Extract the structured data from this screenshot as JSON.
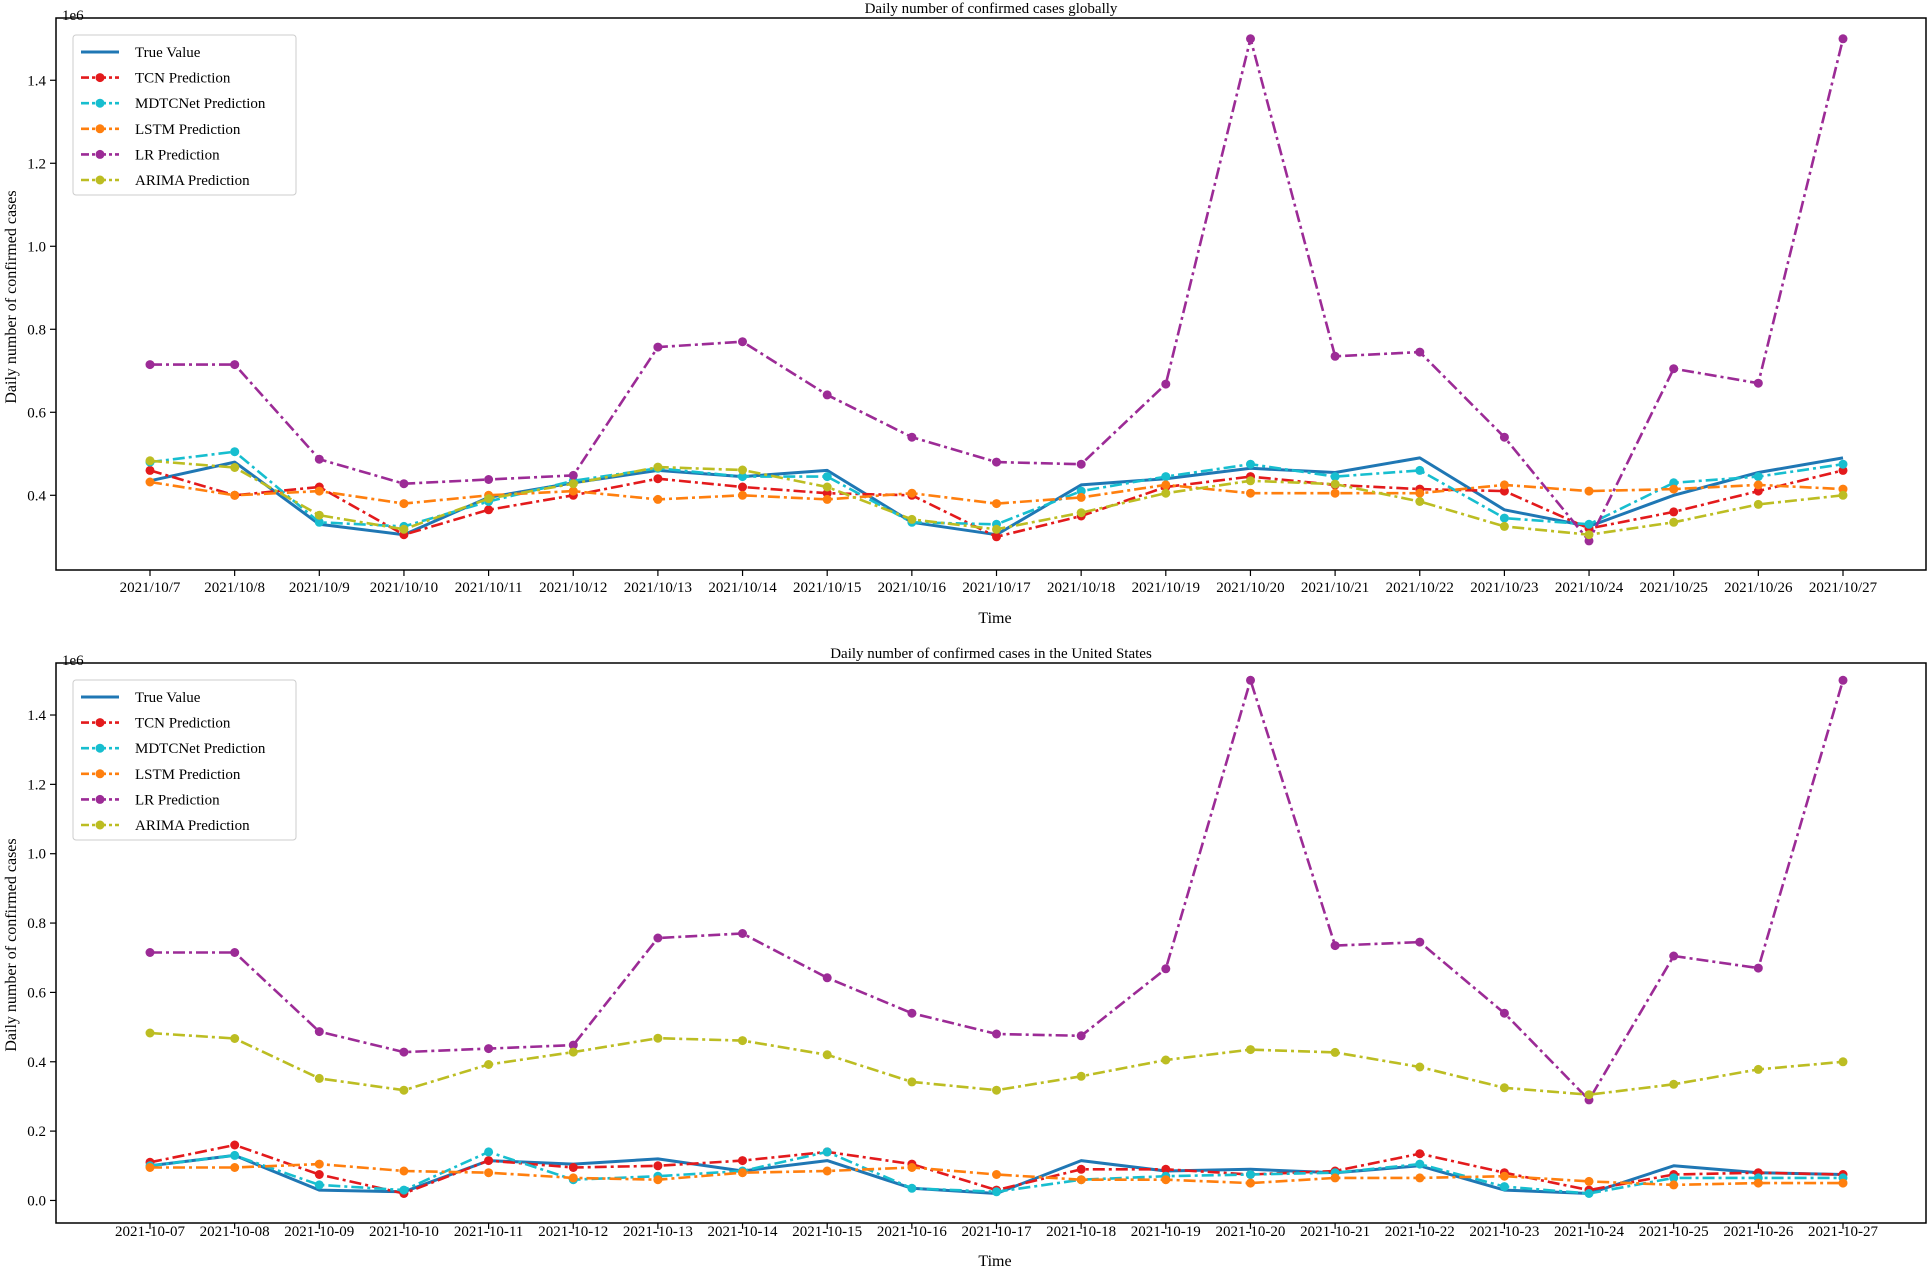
{
  "chart_data": [
    {
      "type": "line",
      "title": "Daily number of confirmed cases globally",
      "xlabel": "Time",
      "ylabel": "Daily number of confirmed cases",
      "y_offset_label": "1e6",
      "ylim": [
        0.22,
        1.55
      ],
      "yticks": [
        0.4,
        0.6,
        0.8,
        1.0,
        1.2,
        1.4
      ],
      "ytick_labels": [
        "0.4",
        "0.6",
        "0.8",
        "1.0",
        "1.2",
        "1.4"
      ],
      "legend_position": "top-left",
      "categories": [
        "2021/10/7",
        "2021/10/8",
        "2021/10/9",
        "2021/10/10",
        "2021/10/11",
        "2021/10/12",
        "2021/10/13",
        "2021/10/14",
        "2021/10/15",
        "2021/10/16",
        "2021/10/17",
        "2021/10/18",
        "2021/10/19",
        "2021/10/20",
        "2021/10/21",
        "2021/10/22",
        "2021/10/23",
        "2021/10/24",
        "2021/10/25",
        "2021/10/26",
        "2021/10/27"
      ],
      "series": [
        {
          "name": "True Value",
          "color": "#1f77b4",
          "style": "solid",
          "markers": false,
          "values": [
            0.435,
            0.48,
            0.33,
            0.305,
            0.395,
            0.43,
            0.46,
            0.445,
            0.46,
            0.335,
            0.305,
            0.425,
            0.44,
            0.465,
            0.455,
            0.49,
            0.365,
            0.325,
            0.4,
            0.455,
            0.49
          ]
        },
        {
          "name": "TCN Prediction",
          "color": "#e31a1c",
          "style": "dashdot",
          "markers": true,
          "values": [
            0.46,
            0.4,
            0.42,
            0.305,
            0.365,
            0.4,
            0.44,
            0.42,
            0.405,
            0.4,
            0.3,
            0.35,
            0.42,
            0.445,
            0.425,
            0.415,
            0.41,
            0.32,
            0.36,
            0.41,
            0.46
          ]
        },
        {
          "name": "MDTCNet Prediction",
          "color": "#17becf",
          "style": "dashdot",
          "markers": true,
          "values": [
            0.48,
            0.505,
            0.335,
            0.325,
            0.385,
            0.435,
            0.465,
            0.445,
            0.445,
            0.335,
            0.33,
            0.41,
            0.445,
            0.475,
            0.445,
            0.46,
            0.345,
            0.33,
            0.43,
            0.445,
            0.475
          ]
        },
        {
          "name": "LSTM Prediction",
          "color": "#ff7f0e",
          "style": "dashdot",
          "markers": true,
          "values": [
            0.432,
            0.4,
            0.41,
            0.38,
            0.4,
            0.41,
            0.39,
            0.4,
            0.39,
            0.405,
            0.38,
            0.395,
            0.425,
            0.405,
            0.405,
            0.405,
            0.425,
            0.41,
            0.415,
            0.425,
            0.415
          ]
        },
        {
          "name": "LR Prediction",
          "color": "#9c2b96",
          "style": "dashdot",
          "markers": true,
          "values": [
            0.715,
            0.715,
            0.487,
            0.428,
            0.438,
            0.448,
            0.757,
            0.77,
            0.642,
            0.54,
            0.48,
            0.475,
            0.668,
            1.5,
            0.735,
            0.745,
            0.54,
            0.29,
            0.705,
            0.67,
            1.5
          ]
        },
        {
          "name": "ARIMA Prediction",
          "color": "#bcbd22",
          "style": "dashdot",
          "markers": true,
          "values": [
            0.483,
            0.467,
            0.352,
            0.318,
            0.392,
            0.428,
            0.468,
            0.461,
            0.42,
            0.342,
            0.318,
            0.358,
            0.405,
            0.435,
            0.427,
            0.385,
            0.325,
            0.305,
            0.335,
            0.378,
            0.4
          ]
        }
      ]
    },
    {
      "type": "line",
      "title": "Daily number of confirmed cases in the United States",
      "xlabel": "Time",
      "ylabel": "Daily number of confirmed cases",
      "y_offset_label": "1e6",
      "ylim": [
        -0.065,
        1.55
      ],
      "yticks": [
        0.0,
        0.2,
        0.4,
        0.6,
        0.8,
        1.0,
        1.2,
        1.4
      ],
      "ytick_labels": [
        "0.0",
        "0.2",
        "0.4",
        "0.6",
        "0.8",
        "1.0",
        "1.2",
        "1.4"
      ],
      "legend_position": "top-left",
      "categories": [
        "2021-10-07",
        "2021-10-08",
        "2021-10-09",
        "2021-10-10",
        "2021-10-11",
        "2021-10-12",
        "2021-10-13",
        "2021-10-14",
        "2021-10-15",
        "2021-10-16",
        "2021-10-17",
        "2021-10-18",
        "2021-10-19",
        "2021-10-20",
        "2021-10-21",
        "2021-10-22",
        "2021-10-23",
        "2021-10-24",
        "2021-10-25",
        "2021-10-26",
        "2021-10-27"
      ],
      "series": [
        {
          "name": "True Value",
          "color": "#1f77b4",
          "style": "solid",
          "markers": false,
          "values": [
            0.1,
            0.13,
            0.03,
            0.025,
            0.115,
            0.105,
            0.12,
            0.085,
            0.115,
            0.035,
            0.02,
            0.115,
            0.085,
            0.09,
            0.08,
            0.1,
            0.03,
            0.02,
            0.1,
            0.08,
            0.075
          ]
        },
        {
          "name": "TCN Prediction",
          "color": "#e31a1c",
          "style": "dashdot",
          "markers": true,
          "values": [
            0.11,
            0.16,
            0.075,
            0.02,
            0.115,
            0.095,
            0.1,
            0.115,
            0.14,
            0.105,
            0.03,
            0.09,
            0.09,
            0.075,
            0.085,
            0.135,
            0.08,
            0.03,
            0.075,
            0.08,
            0.075
          ]
        },
        {
          "name": "MDTCNet Prediction",
          "color": "#17becf",
          "style": "dashdot",
          "markers": true,
          "values": [
            0.1,
            0.13,
            0.045,
            0.03,
            0.14,
            0.06,
            0.07,
            0.085,
            0.14,
            0.035,
            0.025,
            0.06,
            0.07,
            0.075,
            0.08,
            0.105,
            0.04,
            0.02,
            0.065,
            0.065,
            0.065
          ]
        },
        {
          "name": "LSTM Prediction",
          "color": "#ff7f0e",
          "style": "dashdot",
          "markers": true,
          "values": [
            0.095,
            0.095,
            0.105,
            0.085,
            0.08,
            0.065,
            0.06,
            0.08,
            0.085,
            0.095,
            0.075,
            0.06,
            0.06,
            0.05,
            0.065,
            0.065,
            0.07,
            0.055,
            0.045,
            0.05,
            0.05
          ]
        },
        {
          "name": "LR Prediction",
          "color": "#9c2b96",
          "style": "dashdot",
          "markers": true,
          "values": [
            0.715,
            0.715,
            0.487,
            0.428,
            0.438,
            0.448,
            0.757,
            0.77,
            0.642,
            0.54,
            0.48,
            0.475,
            0.668,
            1.5,
            0.735,
            0.745,
            0.54,
            0.29,
            0.705,
            0.67,
            1.5
          ]
        },
        {
          "name": "ARIMA Prediction",
          "color": "#bcbd22",
          "style": "dashdot",
          "markers": true,
          "values": [
            0.483,
            0.467,
            0.352,
            0.318,
            0.392,
            0.428,
            0.468,
            0.461,
            0.42,
            0.342,
            0.318,
            0.358,
            0.405,
            0.435,
            0.427,
            0.385,
            0.325,
            0.305,
            0.335,
            0.378,
            0.4
          ]
        }
      ]
    }
  ]
}
